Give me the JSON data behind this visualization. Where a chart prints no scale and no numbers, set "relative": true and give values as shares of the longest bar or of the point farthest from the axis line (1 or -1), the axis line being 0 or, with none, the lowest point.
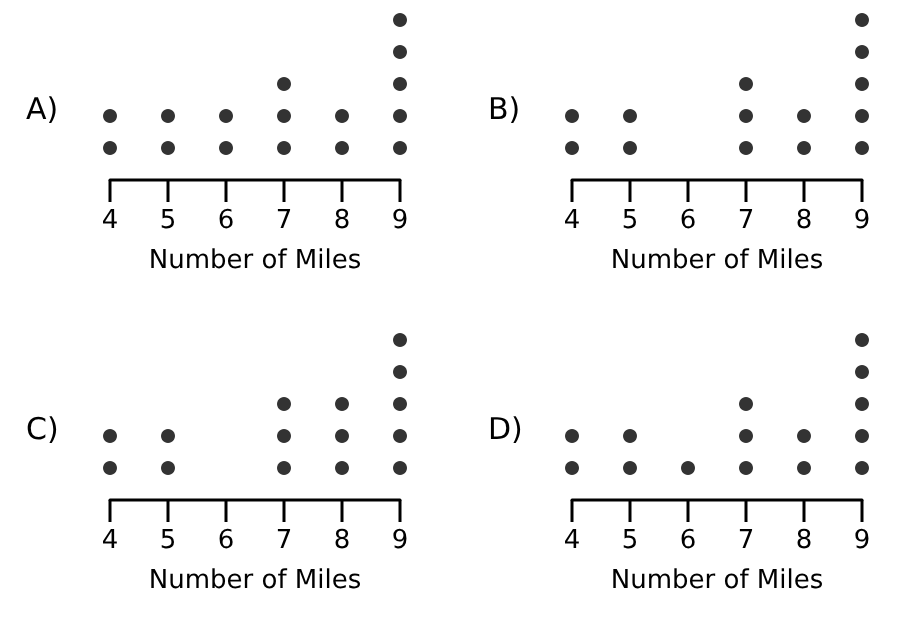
{
  "chart_data": [
    {
      "type": "scatter",
      "title": "A)",
      "xlabel": "Number of Miles",
      "color": "#000000",
      "marker": "circle",
      "xlim": [
        4,
        9
      ],
      "xticks": [
        4,
        5,
        6,
        7,
        8,
        9
      ],
      "relative": true,
      "tick_labels": "x",
      "x": [
        4,
        4,
        5,
        5,
        6,
        6,
        7,
        7,
        7,
        8,
        8,
        9,
        9,
        9,
        9,
        9
      ],
      "values": [
        0.2,
        0.4,
        0.2,
        0.4,
        0.2,
        0.4,
        0.2,
        0.4,
        0.6,
        0.2,
        0.4,
        0.2,
        0.4,
        0.6,
        0.8,
        1
      ]
    },
    {
      "type": "scatter",
      "title": "B)",
      "xlabel": "Number of Miles",
      "color": "#000000",
      "marker": "circle",
      "xlim": [
        4,
        9
      ],
      "xticks": [
        4,
        5,
        6,
        7,
        8,
        9
      ],
      "relative": true,
      "tick_labels": "x",
      "x": [
        4,
        4,
        5,
        5,
        7,
        7,
        7,
        8,
        8,
        9,
        9,
        9,
        9,
        9
      ],
      "values": [
        0.2,
        0.4,
        0.2,
        0.4,
        0.2,
        0.4,
        0.6,
        0.2,
        0.4,
        0.2,
        0.4,
        0.6,
        0.8,
        1
      ]
    },
    {
      "type": "scatter",
      "title": "C)",
      "xlabel": "Number of Miles",
      "color": "#000000",
      "marker": "circle",
      "xlim": [
        4,
        9
      ],
      "xticks": [
        4,
        5,
        6,
        7,
        8,
        9
      ],
      "relative": true,
      "tick_labels": "x",
      "x": [
        4,
        4,
        5,
        5,
        7,
        7,
        7,
        8,
        8,
        8,
        9,
        9,
        9,
        9,
        9
      ],
      "values": [
        0.2,
        0.4,
        0.2,
        0.4,
        0.2,
        0.4,
        0.6,
        0.2,
        0.4,
        0.6,
        0.2,
        0.4,
        0.6,
        0.8,
        1
      ]
    },
    {
      "type": "scatter",
      "title": "D)",
      "xlabel": "Number of Miles",
      "color": "#000000",
      "marker": "circle",
      "xlim": [
        4,
        9
      ],
      "xticks": [
        4,
        5,
        6,
        7,
        8,
        9
      ],
      "relative": true,
      "tick_labels": "x",
      "x": [
        4,
        4,
        5,
        5,
        6,
        7,
        7,
        7,
        8,
        8,
        9,
        9,
        9,
        9,
        9
      ],
      "values": [
        0.2,
        0.4,
        0.2,
        0.4,
        0.2,
        0.2,
        0.4,
        0.6,
        0.2,
        0.4,
        0.2,
        0.4,
        0.6,
        0.8,
        1
      ]
    }
  ]
}
